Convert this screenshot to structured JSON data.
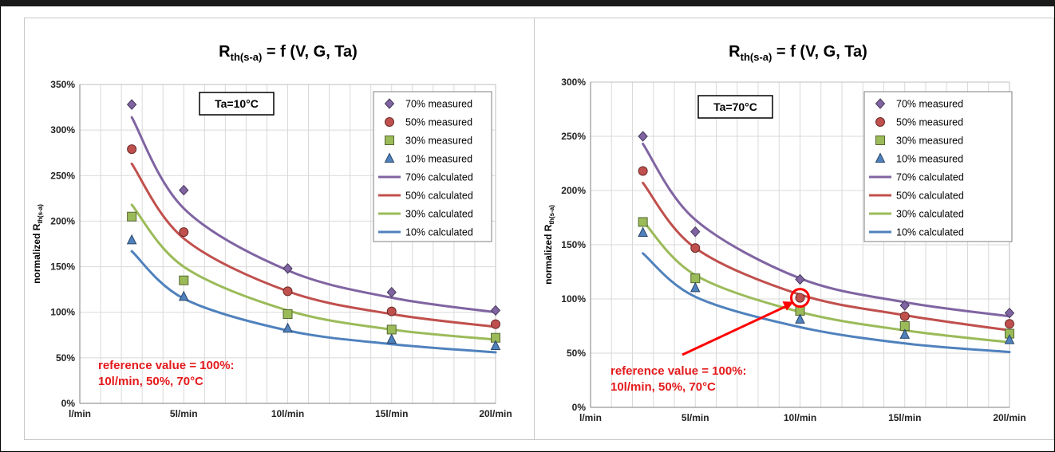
{
  "chart_data": [
    {
      "type": "line",
      "title_main": "R",
      "title_sub": "th(s-a)",
      "title_rest": " = f (V, G, Ta)",
      "ylabel_main": "normalized R",
      "ylabel_sub": "th(s-a)",
      "x_tick_labels": [
        "l/min",
        "5l/min",
        "10l/min",
        "15l/min",
        "20l/min"
      ],
      "x_tick_values": [
        0,
        5,
        10,
        15,
        20
      ],
      "xlim": [
        0,
        20
      ],
      "y_tick_labels": [
        "0%",
        "50%",
        "100%",
        "150%",
        "200%",
        "250%",
        "300%",
        "350%"
      ],
      "y_tick_values": [
        0,
        50,
        100,
        150,
        200,
        250,
        300,
        350
      ],
      "ylim": [
        0,
        350
      ],
      "grid": true,
      "legend_position": "top-right",
      "condition_box": "Ta=10°C",
      "annotation": [
        "reference value = 100%:",
        "10l/min, 50%, 70°C"
      ],
      "measured": [
        {
          "name": "70% measured",
          "marker": "diamond",
          "color": "#8064a2",
          "x": [
            2.5,
            5,
            10,
            15,
            20
          ],
          "y": [
            328,
            234,
            148,
            122,
            102
          ]
        },
        {
          "name": "50% measured",
          "marker": "circle",
          "color": "#c0504d",
          "x": [
            2.5,
            5,
            10,
            15,
            20
          ],
          "y": [
            279,
            188,
            123,
            101,
            87
          ]
        },
        {
          "name": "30% measured",
          "marker": "square",
          "color": "#9bbb59",
          "x": [
            2.5,
            5,
            10,
            15,
            20
          ],
          "y": [
            205,
            135,
            98,
            81,
            72
          ]
        },
        {
          "name": "10% measured",
          "marker": "triangle",
          "color": "#4f81bd",
          "x": [
            2.5,
            5,
            10,
            15,
            20
          ],
          "y": [
            179,
            117,
            82,
            70,
            63
          ]
        }
      ],
      "calculated": [
        {
          "name": "70% calculated",
          "color": "#8064a2",
          "x": [
            2.5,
            5,
            10,
            15,
            20
          ],
          "y": [
            314,
            214,
            146,
            116,
            100
          ]
        },
        {
          "name": "50% calculated",
          "color": "#c0504d",
          "x": [
            2.5,
            5,
            10,
            15,
            20
          ],
          "y": [
            263,
            181,
            123,
            98,
            84
          ]
        },
        {
          "name": "30% calculated",
          "color": "#9bbb59",
          "x": [
            2.5,
            5,
            10,
            15,
            20
          ],
          "y": [
            218,
            150,
            102,
            81,
            70
          ]
        },
        {
          "name": "10% calculated",
          "color": "#4f81bd",
          "x": [
            2.5,
            5,
            10,
            15,
            20
          ],
          "y": [
            167,
            115,
            80,
            65,
            56
          ]
        }
      ]
    },
    {
      "type": "line",
      "title_main": "R",
      "title_sub": "th(s-a)",
      "title_rest": " = f (V, G, Ta)",
      "ylabel_main": "normalized R",
      "ylabel_sub": "th(s-a)",
      "x_tick_labels": [
        "l/min",
        "5l/min",
        "10l/min",
        "15l/min",
        "20l/min"
      ],
      "x_tick_values": [
        0,
        5,
        10,
        15,
        20
      ],
      "xlim": [
        0,
        20
      ],
      "y_tick_labels": [
        "0%",
        "50%",
        "100%",
        "150%",
        "200%",
        "250%",
        "300%"
      ],
      "y_tick_values": [
        0,
        50,
        100,
        150,
        200,
        250,
        300
      ],
      "ylim": [
        0,
        300
      ],
      "grid": true,
      "legend_position": "top-right",
      "condition_box": "Ta=70°C",
      "annotation": [
        "reference value = 100%:",
        "10l/min, 50%, 70°C"
      ],
      "highlight_point": {
        "x": 10,
        "y": 101
      },
      "measured": [
        {
          "name": "70% measured",
          "marker": "diamond",
          "color": "#8064a2",
          "x": [
            2.5,
            5,
            10,
            15,
            20
          ],
          "y": [
            250,
            162,
            118,
            94,
            87
          ]
        },
        {
          "name": "50% measured",
          "marker": "circle",
          "color": "#c0504d",
          "x": [
            2.5,
            5,
            10,
            15,
            20
          ],
          "y": [
            218,
            147,
            101,
            84,
            77
          ]
        },
        {
          "name": "30% measured",
          "marker": "square",
          "color": "#9bbb59",
          "x": [
            2.5,
            5,
            10,
            15,
            20
          ],
          "y": [
            171,
            119,
            89,
            75,
            68
          ]
        },
        {
          "name": "10% measured",
          "marker": "triangle",
          "color": "#4f81bd",
          "x": [
            2.5,
            5,
            10,
            15,
            20
          ],
          "y": [
            161,
            110,
            81,
            67,
            62
          ]
        }
      ],
      "calculated": [
        {
          "name": "70% calculated",
          "color": "#8064a2",
          "x": [
            2.5,
            5,
            10,
            15,
            20
          ],
          "y": [
            243,
            173,
            119,
            97,
            84
          ]
        },
        {
          "name": "50% calculated",
          "color": "#c0504d",
          "x": [
            2.5,
            5,
            10,
            15,
            20
          ],
          "y": [
            207,
            147,
            104,
            85,
            71
          ]
        },
        {
          "name": "30% calculated",
          "color": "#9bbb59",
          "x": [
            2.5,
            5,
            10,
            15,
            20
          ],
          "y": [
            172,
            122,
            88,
            71,
            60
          ]
        },
        {
          "name": "10% calculated",
          "color": "#4f81bd",
          "x": [
            2.5,
            5,
            10,
            15,
            20
          ],
          "y": [
            142,
            102,
            74,
            59,
            51
          ]
        }
      ]
    }
  ]
}
